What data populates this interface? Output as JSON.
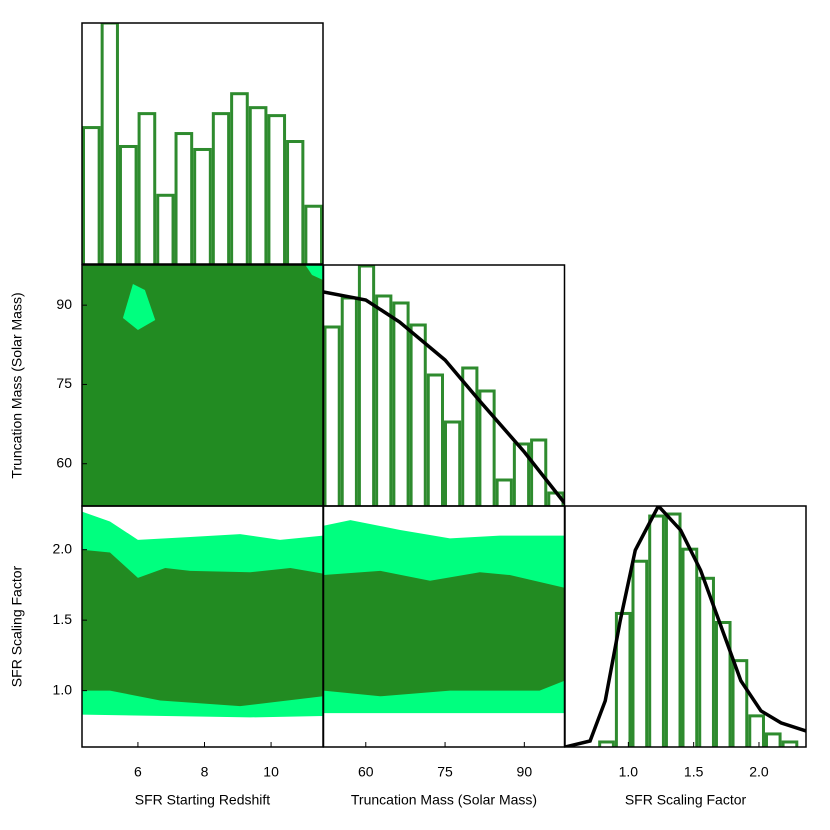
{
  "chart_data": [
    {
      "type": "histogram",
      "color": "#2e8b2e",
      "bins": [
        4.32,
        4.88,
        5.43,
        5.99,
        6.55,
        7.1,
        7.66,
        8.22,
        8.77,
        9.33,
        9.89,
        10.45,
        11.0,
        11.56
      ],
      "values": [
        137,
        242,
        118,
        151,
        69,
        131,
        115,
        151,
        171,
        157,
        149,
        123,
        58
      ],
      "xlim": [
        4.32,
        11.56
      ],
      "ylim": [
        0,
        242
      ]
    },
    {
      "type": "contour",
      "xlim": [
        4.32,
        11.56
      ],
      "ylim": [
        52,
        97.6
      ],
      "yticks": [
        60,
        75,
        90
      ],
      "ylabel": "Truncation Mass (Solar Mass)",
      "regions": [
        {
          "color": "#228b22",
          "x": [
            4.32,
            11.56,
            11.56,
            4.32
          ],
          "y": [
            52,
            52,
            97.6,
            97.6
          ]
        },
        {
          "color": "#00ff7f",
          "x": [
            5.55,
            5.85,
            6.21,
            6.52,
            6.0
          ],
          "y": [
            87.57,
            94.0,
            92.87,
            87.2,
            85.3
          ]
        },
        {
          "color": "#00ff7f",
          "x": [
            11.03,
            11.56,
            11.56,
            11.23
          ],
          "y": [
            97.6,
            97.6,
            94.76,
            95.7
          ]
        }
      ]
    },
    {
      "type": "histogram",
      "color": "#2e8b2e",
      "bins": [
        52,
        55.26,
        58.51,
        61.77,
        65.03,
        68.29,
        71.54,
        74.8,
        78.06,
        81.31,
        84.57,
        87.83,
        91.09,
        94.34,
        97.6
      ],
      "values": [
        179,
        208,
        240,
        210,
        203,
        181,
        131,
        84,
        138,
        115,
        26,
        62,
        66,
        13
      ],
      "xlim": [
        52,
        97.6
      ],
      "ylim": [
        0,
        241
      ],
      "curve": {
        "color": "#000000",
        "x": [
          52,
          60,
          66.4,
          75,
          81.4,
          90,
          97.6
        ],
        "y": [
          214,
          206,
          184,
          146,
          106,
          54,
          3
        ]
      }
    },
    {
      "type": "contour",
      "xlim": [
        4.32,
        11.56
      ],
      "ylim": [
        0.6,
        2.31
      ],
      "xticks": [
        6,
        8,
        10
      ],
      "xlabel": "SFR Starting Redshift",
      "yticks": [
        {
          "value": 1,
          "label": "1.0"
        },
        1.5,
        {
          "value": 2,
          "label": "2.0"
        }
      ],
      "ylabel": "SFR Scaling Factor",
      "regions": [
        {
          "color": "#00ff7f",
          "x": [
            4.32,
            5.16,
            6.0,
            7.57,
            9.07,
            10.27,
            11.56,
            11.56,
            9.37,
            4.32
          ],
          "y": [
            2.27,
            2.2,
            2.07,
            2.09,
            2.11,
            2.07,
            2.1,
            0.82,
            0.81,
            0.83
          ]
        },
        {
          "color": "#228b22",
          "x": [
            4.32,
            5.16,
            6.0,
            6.82,
            7.57,
            9.37,
            10.58,
            11.56,
            11.56,
            9.07,
            6.67,
            5.16,
            4.32
          ],
          "y": [
            2.0,
            1.98,
            1.8,
            1.87,
            1.85,
            1.84,
            1.87,
            1.83,
            0.96,
            0.89,
            0.93,
            1.0,
            1.0
          ]
        }
      ]
    },
    {
      "type": "contour",
      "xlim": [
        52,
        97.6
      ],
      "ylim": [
        0.6,
        2.31
      ],
      "xticks": [
        60,
        75,
        90
      ],
      "xlabel": "Truncation Mass (Solar Mass)",
      "regions": [
        {
          "color": "#00ff7f",
          "x": [
            52,
            57.09,
            66.51,
            75.93,
            85.35,
            97.6,
            97.6,
            75.93,
            52
          ],
          "y": [
            2.17,
            2.21,
            2.14,
            2.08,
            2.1,
            2.1,
            0.84,
            0.84,
            0.84
          ]
        },
        {
          "color": "#228b22",
          "x": [
            52,
            62.74,
            72.16,
            81.58,
            87.24,
            97.6,
            97.6,
            92.89,
            75.93,
            62.74,
            52
          ],
          "y": [
            1.82,
            1.85,
            1.78,
            1.84,
            1.82,
            1.73,
            1.07,
            1.0,
            1.0,
            0.96,
            1.0
          ]
        }
      ]
    },
    {
      "type": "histogram",
      "color": "#2e8b2e",
      "bins": [
        0.769,
        0.897,
        1.024,
        1.152,
        1.28,
        1.407,
        1.535,
        1.663,
        1.79,
        1.918,
        2.046,
        2.173,
        2.301
      ],
      "values": [
        5,
        133,
        185,
        230,
        232,
        197,
        168,
        124,
        86,
        31,
        13,
        5
      ],
      "xlim": [
        0.515,
        2.36
      ],
      "ylim": [
        0,
        240
      ],
      "xticks": [
        {
          "value": 1,
          "label": "1.0"
        },
        1.5,
        {
          "value": 2,
          "label": "2.0"
        }
      ],
      "xlabel": "SFR Scaling Factor",
      "curve": {
        "color": "#000000",
        "x": [
          0.515,
          0.707,
          0.823,
          0.938,
          1.053,
          1.23,
          1.4,
          1.553,
          1.707,
          1.861,
          2.015,
          2.169,
          2.36
        ],
        "y": [
          0,
          6,
          46,
          126,
          196,
          240,
          216,
          176,
          121,
          66,
          36,
          24,
          16
        ]
      }
    }
  ]
}
